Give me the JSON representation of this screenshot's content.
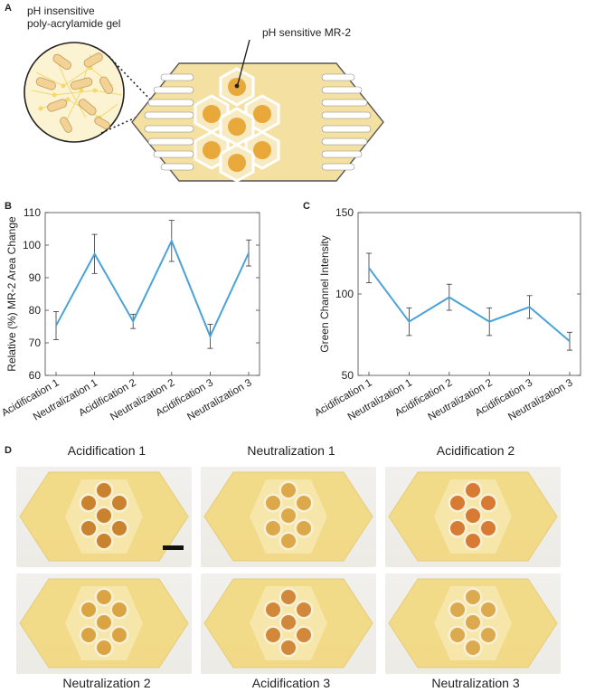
{
  "panel_letters": {
    "a": "A",
    "b": "B",
    "c": "C",
    "d": "D"
  },
  "schematic": {
    "label_gel_line1": "pH insensitive",
    "label_gel_line2": "poly-acrylamide gel",
    "label_mr2": "pH sensitive MR-2",
    "colors": {
      "gel": "#f4e0a0",
      "dot": "#e8a93a",
      "outline": "#555555"
    }
  },
  "chart_data": [
    {
      "type": "line",
      "categories": [
        "Acidification 1",
        "Neutralization 1",
        "Acidification 2",
        "Neutralization 2",
        "Acidification 3",
        "Neutralization 3"
      ],
      "values": [
        75.3,
        97.3,
        76.6,
        101.3,
        72.0,
        97.6
      ],
      "error": [
        4.3,
        6.0,
        2.2,
        6.3,
        3.7,
        4.0
      ],
      "ylabel": "Relative (%) MR-2 Area Change",
      "xlabel": "",
      "ylim": [
        60,
        110
      ],
      "yticks": [
        60,
        70,
        80,
        90,
        100,
        110
      ],
      "color": "#4aa3d8",
      "grid": false
    },
    {
      "type": "line",
      "categories": [
        "Acidification 1",
        "Neutralization 1",
        "Acidification 2",
        "Neutralization 2",
        "Acidification 3",
        "Neutralization 3"
      ],
      "values": [
        116,
        83,
        98,
        83,
        92,
        71
      ],
      "error": [
        9,
        8.5,
        8,
        8.5,
        7,
        5.5
      ],
      "ylabel": "Green Channel Intensity",
      "xlabel": "",
      "ylim": [
        50,
        150
      ],
      "yticks": [
        50,
        100,
        150
      ],
      "color": "#4aa3d8",
      "grid": false
    }
  ],
  "photos": [
    {
      "title": "Acidification 1",
      "dot_color": "#c9822e"
    },
    {
      "title": "Neutralization 1",
      "dot_color": "#dca84a"
    },
    {
      "title": "Acidification 2",
      "dot_color": "#d77b34"
    },
    {
      "title": "Neutralization 2",
      "dot_color": "#dba443"
    },
    {
      "title": "Acidification 3",
      "dot_color": "#d2883a"
    },
    {
      "title": "Neutralization 3",
      "dot_color": "#dcaa4e"
    }
  ]
}
